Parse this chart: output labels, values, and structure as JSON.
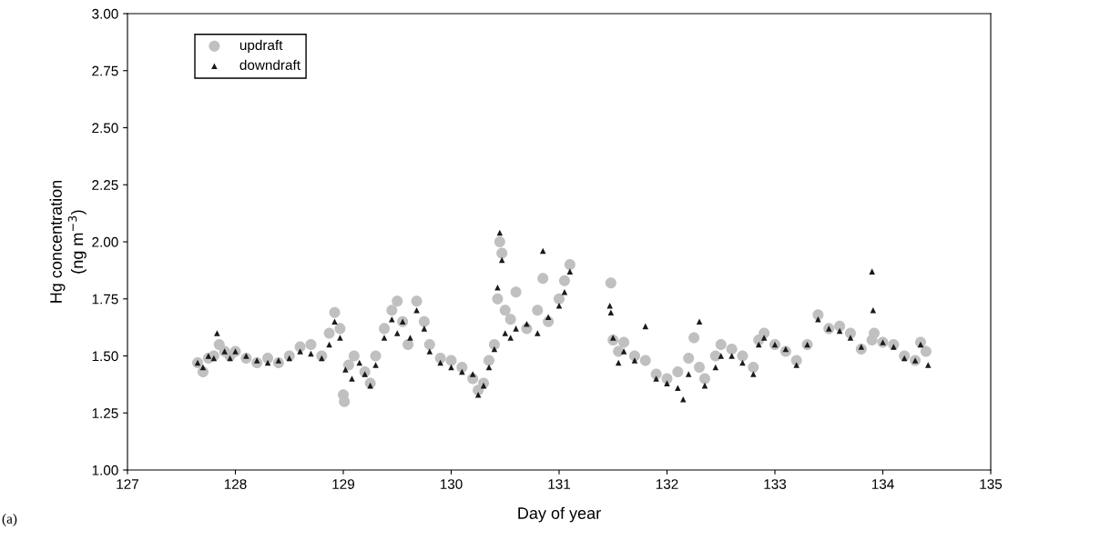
{
  "chart_data": {
    "type": "scatter",
    "xlabel": "Day of year",
    "ylabel": "Hg concentration\n(ng m$^{−3}$)",
    "annotations": [
      "(a)"
    ],
    "xlim": [
      127,
      135
    ],
    "xticks": [
      127,
      128,
      129,
      130,
      131,
      132,
      133,
      134,
      135
    ],
    "ylim": [
      1.0,
      3.0
    ],
    "yticks": [
      {
        "value": 1.0,
        "label": "1.00"
      },
      {
        "value": 1.25,
        "label": "1.25"
      },
      {
        "value": 1.5,
        "label": "1.50"
      },
      {
        "value": 1.75,
        "label": "1.75"
      },
      {
        "value": 2.0,
        "label": "2.00"
      },
      {
        "value": 2.25,
        "label": "2.25"
      },
      {
        "value": 2.5,
        "label": "2.50"
      },
      {
        "value": 2.75,
        "label": "2.75"
      },
      {
        "value": 3.0,
        "label": "3.00"
      }
    ],
    "grid": false,
    "legend": "top left",
    "series": [
      {
        "name": "updraft",
        "color": "#c0c0c0",
        "marker": "circle",
        "x": [
          127.65,
          127.7,
          127.75,
          127.8,
          127.85,
          127.9,
          127.95,
          128.0,
          128.1,
          128.2,
          128.3,
          128.4,
          128.5,
          128.6,
          128.7,
          128.8,
          128.87,
          128.92,
          128.97,
          129.0,
          129.01,
          129.05,
          129.1,
          129.2,
          129.25,
          129.3,
          129.38,
          129.45,
          129.5,
          129.55,
          129.6,
          129.68,
          129.75,
          129.8,
          129.9,
          130.0,
          130.1,
          130.2,
          130.25,
          130.3,
          130.35,
          130.4,
          130.43,
          130.45,
          130.47,
          130.5,
          130.55,
          130.6,
          130.7,
          130.8,
          130.85,
          130.9,
          131.0,
          131.05,
          131.1,
          131.48,
          131.5,
          131.55,
          131.6,
          131.7,
          131.8,
          131.9,
          132.0,
          132.1,
          132.2,
          132.25,
          132.3,
          132.35,
          132.45,
          132.5,
          132.6,
          132.7,
          132.8,
          132.85,
          132.9,
          133.0,
          133.1,
          133.2,
          133.3,
          133.4,
          133.5,
          133.6,
          133.7,
          133.8,
          133.9,
          133.92,
          134.0,
          134.1,
          134.2,
          134.3,
          134.35,
          134.4
        ],
        "values": [
          1.47,
          1.43,
          1.49,
          1.5,
          1.55,
          1.52,
          1.5,
          1.52,
          1.49,
          1.47,
          1.49,
          1.47,
          1.5,
          1.54,
          1.55,
          1.5,
          1.6,
          1.69,
          1.62,
          1.33,
          1.3,
          1.46,
          1.5,
          1.43,
          1.38,
          1.5,
          1.62,
          1.7,
          1.74,
          1.65,
          1.55,
          1.74,
          1.65,
          1.55,
          1.49,
          1.48,
          1.45,
          1.4,
          1.35,
          1.38,
          1.48,
          1.55,
          1.75,
          2.0,
          1.95,
          1.7,
          1.66,
          1.78,
          1.62,
          1.7,
          1.84,
          1.65,
          1.75,
          1.83,
          1.9,
          1.82,
          1.57,
          1.52,
          1.56,
          1.5,
          1.48,
          1.42,
          1.4,
          1.43,
          1.49,
          1.58,
          1.45,
          1.4,
          1.5,
          1.55,
          1.53,
          1.5,
          1.45,
          1.57,
          1.6,
          1.55,
          1.52,
          1.48,
          1.55,
          1.68,
          1.62,
          1.63,
          1.6,
          1.53,
          1.57,
          1.6,
          1.56,
          1.55,
          1.5,
          1.48,
          1.56,
          1.52
        ]
      },
      {
        "name": "downdraft",
        "color": "#1a1a1a",
        "marker": "triangle",
        "x": [
          127.65,
          127.7,
          127.75,
          127.8,
          127.83,
          127.9,
          127.95,
          128.0,
          128.1,
          128.2,
          128.3,
          128.4,
          128.5,
          128.6,
          128.7,
          128.8,
          128.87,
          128.92,
          128.97,
          129.02,
          129.08,
          129.15,
          129.2,
          129.25,
          129.3,
          129.38,
          129.45,
          129.5,
          129.55,
          129.62,
          129.68,
          129.75,
          129.8,
          129.9,
          130.0,
          130.1,
          130.2,
          130.25,
          130.3,
          130.35,
          130.4,
          130.43,
          130.45,
          130.47,
          130.5,
          130.55,
          130.6,
          130.7,
          130.8,
          130.85,
          130.9,
          131.0,
          131.05,
          131.1,
          131.47,
          131.48,
          131.5,
          131.55,
          131.6,
          131.7,
          131.8,
          131.9,
          132.0,
          132.1,
          132.15,
          132.2,
          132.3,
          132.35,
          132.45,
          132.5,
          132.6,
          132.7,
          132.8,
          132.85,
          132.9,
          133.0,
          133.1,
          133.2,
          133.3,
          133.4,
          133.5,
          133.6,
          133.7,
          133.8,
          133.9,
          133.91,
          134.0,
          134.1,
          134.2,
          134.3,
          134.35,
          134.42
        ],
        "values": [
          1.47,
          1.45,
          1.5,
          1.49,
          1.6,
          1.52,
          1.49,
          1.52,
          1.5,
          1.48,
          1.47,
          1.48,
          1.49,
          1.52,
          1.51,
          1.49,
          1.55,
          1.65,
          1.58,
          1.44,
          1.4,
          1.47,
          1.42,
          1.37,
          1.46,
          1.58,
          1.66,
          1.6,
          1.65,
          1.58,
          1.7,
          1.62,
          1.52,
          1.47,
          1.45,
          1.43,
          1.42,
          1.33,
          1.37,
          1.45,
          1.53,
          1.8,
          2.04,
          1.92,
          1.6,
          1.58,
          1.62,
          1.64,
          1.6,
          1.96,
          1.67,
          1.72,
          1.78,
          1.87,
          1.72,
          1.69,
          1.58,
          1.47,
          1.52,
          1.48,
          1.63,
          1.4,
          1.38,
          1.36,
          1.31,
          1.42,
          1.65,
          1.37,
          1.45,
          1.5,
          1.5,
          1.47,
          1.42,
          1.55,
          1.58,
          1.55,
          1.53,
          1.46,
          1.55,
          1.66,
          1.62,
          1.61,
          1.58,
          1.54,
          1.87,
          1.7,
          1.56,
          1.54,
          1.49,
          1.48,
          1.55,
          1.46
        ]
      }
    ]
  }
}
